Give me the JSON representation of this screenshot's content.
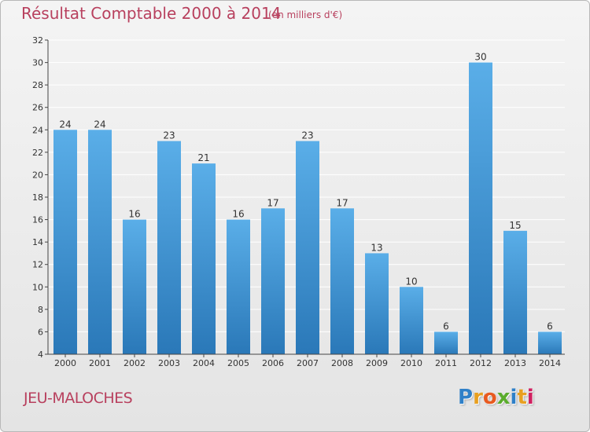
{
  "header": {
    "title": "Résultat Comptable 2000 à 2014",
    "subtitle": "(en milliers d'€)"
  },
  "footer": {
    "commune": "JEU-MALOCHES",
    "logo_letters": [
      "P",
      "r",
      "o",
      "x",
      "i",
      "t",
      "i"
    ],
    "logo_colors": [
      "#2f80c8",
      "#e8a020",
      "#e85a20",
      "#5aac2c",
      "#2f80c8",
      "#e8a020",
      "#d02060"
    ]
  },
  "colors": {
    "bar_light": "#5aaee8",
    "bar_dark": "#2a78b8",
    "grid": "#ffffff",
    "axis": "#444444",
    "text": "#333333",
    "accent": "#b8405e"
  },
  "chart_data": {
    "type": "bar",
    "title": "Résultat Comptable 2000 à 2014",
    "subtitle": "(en milliers d'€)",
    "xlabel": "",
    "ylabel": "",
    "categories": [
      "2000",
      "2001",
      "2002",
      "2003",
      "2004",
      "2005",
      "2006",
      "2007",
      "2008",
      "2009",
      "2010",
      "2011",
      "2012",
      "2013",
      "2014"
    ],
    "values": [
      24,
      24,
      16,
      23,
      21,
      16,
      17,
      23,
      17,
      13,
      10,
      6,
      30,
      15,
      6
    ],
    "ylim": [
      4,
      32
    ],
    "yticks": [
      4,
      6,
      8,
      10,
      12,
      14,
      16,
      18,
      20,
      22,
      24,
      26,
      28,
      30,
      32
    ],
    "grid": true,
    "legend": "none"
  }
}
